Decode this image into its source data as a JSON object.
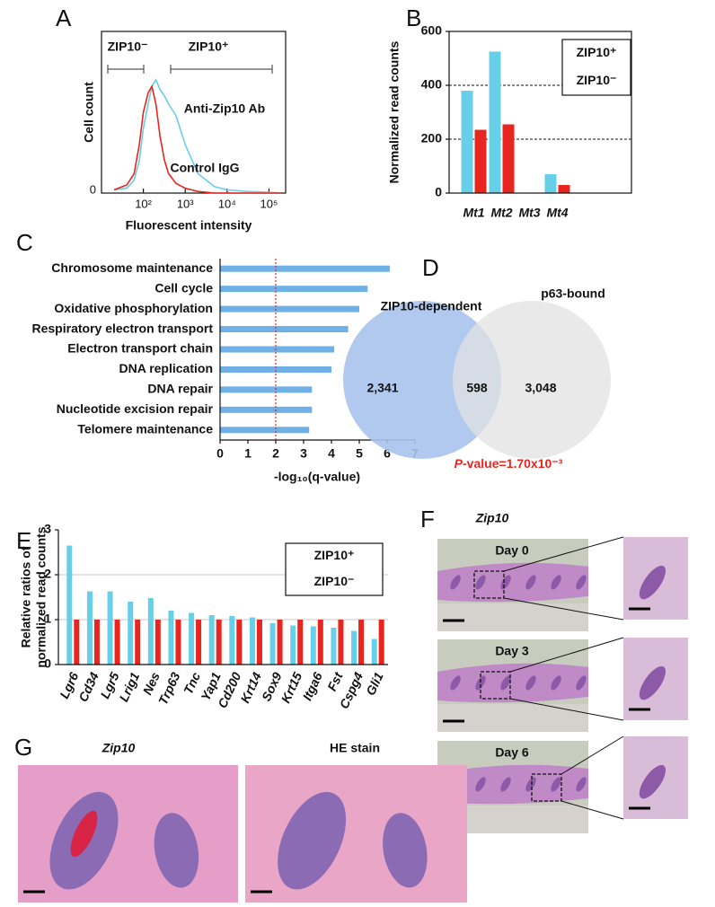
{
  "panel_labels": [
    "A",
    "B",
    "C",
    "D",
    "E",
    "F",
    "G"
  ],
  "chart_data": [
    {
      "type": "line",
      "xscale": "log",
      "ylabel": "Cell count",
      "xlabel": "Fluorescent intensity",
      "x": [
        20,
        40,
        60,
        80,
        100,
        130,
        160,
        200,
        250,
        320,
        400,
        600,
        1000,
        2000,
        5000,
        10000,
        30000,
        100000,
        200000
      ],
      "series": [
        {
          "name": "Anti-Zip10 Ab",
          "color": "#68cfe8",
          "values": [
            0.02,
            0.03,
            0.08,
            0.2,
            0.4,
            0.55,
            0.66,
            0.7,
            0.64,
            0.6,
            0.55,
            0.48,
            0.3,
            0.12,
            0.04,
            0.02,
            0.01,
            0.005,
            0
          ]
        },
        {
          "name": "Control IgG",
          "color": "#e8251f",
          "values": [
            0.02,
            0.05,
            0.12,
            0.3,
            0.5,
            0.62,
            0.66,
            0.55,
            0.35,
            0.2,
            0.12,
            0.06,
            0.03,
            0.01,
            0,
            0,
            0,
            0,
            0
          ]
        }
      ],
      "gates": [
        {
          "label": "ZIP10⁻",
          "color": "#e8251f"
        },
        {
          "label": "ZIP10⁺",
          "color": "#68cfe8"
        }
      ],
      "xlim": [
        10,
        250000
      ],
      "ylim": [
        0,
        1
      ],
      "xticks": [
        {
          "value": 100,
          "label": "10²"
        },
        {
          "value": 1000,
          "label": "10³"
        },
        {
          "value": 10000,
          "label": "10⁴"
        },
        {
          "value": 100000,
          "label": "10⁵"
        }
      ],
      "yticks": [
        0
      ]
    },
    {
      "type": "bar",
      "ylabel": "Normalized read counts",
      "categories": [
        "Mt1",
        "Mt2",
        "Mt3",
        "Mt4"
      ],
      "series": [
        {
          "name": "ZIP10⁺",
          "color": "#68cfe8",
          "values": [
            380,
            525,
            0,
            70
          ]
        },
        {
          "name": "ZIP10⁻",
          "color": "#e8251f",
          "values": [
            235,
            255,
            0,
            30
          ]
        }
      ],
      "ylim": [
        0,
        600
      ],
      "yticks": [
        0,
        200,
        400,
        600
      ],
      "grid": true,
      "legend": "upper right"
    },
    {
      "type": "barh",
      "xlabel": "-log₁₀(q-value)",
      "categories": [
        "Chromosome maintenance",
        "Cell cycle",
        "Oxidative phosphorylation",
        "Respiratory electron transport",
        "Electron transport chain",
        "DNA replication",
        "DNA repair",
        "Nucleotide excision repair",
        "Telomere maintenance"
      ],
      "values": [
        6.1,
        5.3,
        5.0,
        4.6,
        4.1,
        4.0,
        3.3,
        3.3,
        3.2
      ],
      "color": "#6fb0e6",
      "xlim": [
        0,
        7
      ],
      "xticks": [
        0,
        1,
        2,
        3,
        4,
        5,
        6,
        7
      ],
      "reference_line": 2,
      "reference_color": "#e8251f"
    },
    {
      "type": "venn",
      "sets": [
        "ZIP10-dependent",
        "p63-bound"
      ],
      "colors": [
        "#a9c3ec",
        "#e2e2e2"
      ],
      "values": [
        2341,
        598,
        3048
      ],
      "value_labels": [
        "2,341",
        "598",
        "3,048"
      ],
      "annotation": {
        "symbol": "P",
        "text": "-value=1.70x10⁻³",
        "color": "#e8251f"
      }
    },
    {
      "type": "bar",
      "ylabel": [
        "Relative ratios of",
        "normalized read counts"
      ],
      "categories": [
        "Lgr6",
        "Cd34",
        "Lgr5",
        "Lrig1",
        "Nes",
        "Trp63",
        "Tnc",
        "Yap1",
        "Cd200",
        "Krt14",
        "Sox9",
        "Krt15",
        "Itga6",
        "Fst",
        "Cspg4",
        "Gli1"
      ],
      "series": [
        {
          "name": "ZIP10⁺",
          "color": "#68cfe8",
          "values": [
            2.65,
            1.63,
            1.63,
            1.4,
            1.48,
            1.2,
            1.15,
            1.1,
            1.08,
            1.05,
            0.92,
            0.87,
            0.85,
            0.82,
            0.75,
            0.57
          ]
        },
        {
          "name": "ZIP10⁻",
          "color": "#e8251f",
          "values": [
            1,
            1,
            1,
            1,
            1,
            1,
            1,
            1,
            1,
            1,
            1,
            1,
            1,
            1,
            1,
            1
          ]
        }
      ],
      "ylim": [
        0,
        3
      ],
      "yticks": [
        0,
        1,
        2,
        3
      ],
      "grid": true,
      "legend": "upper right"
    }
  ],
  "images": {
    "F": {
      "title": "Zip10",
      "days": [
        "Day 0",
        "Day 3",
        "Day 6"
      ]
    },
    "G": {
      "titles": [
        "Zip10",
        "HE stain"
      ]
    }
  }
}
